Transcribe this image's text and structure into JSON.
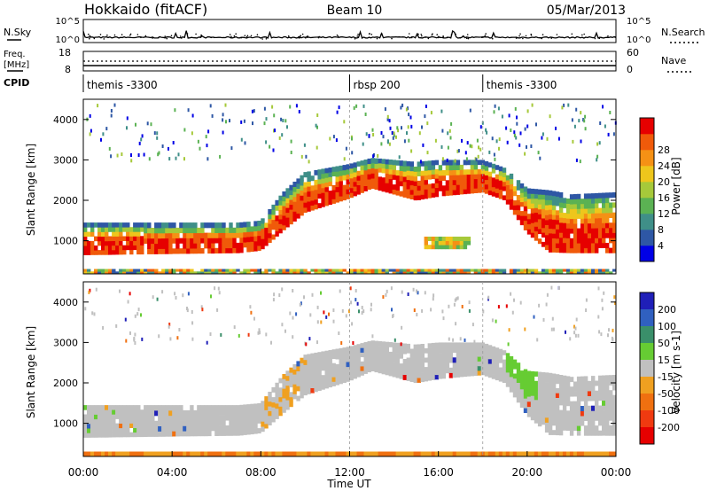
{
  "header": {
    "title_left": "Hokkaido (fitACF)",
    "title_center": "Beam 10",
    "title_right": "05/Mar/2013"
  },
  "top_panels": {
    "nsky_label": "N.Sky",
    "nsky_ticks": [
      "10^5",
      "10^0"
    ],
    "nsearch_label": "N.Search",
    "nsearch_ticks": [
      "10^5",
      "10^0"
    ],
    "freq_label": "Freq.",
    "freq_unit": "[MHz]",
    "freq_ticks": [
      "18",
      "8"
    ],
    "nave_label": "Nave",
    "nave_ticks": [
      "60",
      "0"
    ],
    "cpid_label": "CPID"
  },
  "cpid_segments": [
    {
      "name": "themis -3300",
      "start_hour": 0
    },
    {
      "name": "rbsp 200",
      "start_hour": 12
    },
    {
      "name": "themis -3300",
      "start_hour": 18
    }
  ],
  "chart_data": [
    {
      "type": "heatmap",
      "quantity": "Power",
      "ylabel": "Slant Range [km]",
      "y_ticks": [
        "1000",
        "2000",
        "3000",
        "4000"
      ],
      "ylim": [
        180,
        4500
      ],
      "xlim": [
        0,
        24
      ],
      "colorbar_label": "Power [dB]",
      "colorbar_ticks": [
        "4",
        "8",
        "12",
        "16",
        "20",
        "24",
        "28"
      ],
      "colorbar_range": [
        0,
        32
      ],
      "colors": [
        "#0000e6",
        "#2e57a5",
        "#3f8f88",
        "#5bb253",
        "#a6c93a",
        "#eec61c",
        "#f59115",
        "#f05a0a",
        "#e60000"
      ],
      "echo_bands": [
        {
          "name": "main",
          "lower": [
            [
              0,
              650
            ],
            [
              4,
              680
            ],
            [
              7,
              700
            ],
            [
              8,
              760
            ],
            [
              9,
              1250
            ],
            [
              10,
              1700
            ],
            [
              12,
              2050
            ],
            [
              13,
              2300
            ],
            [
              15,
              2000
            ],
            [
              16,
              2100
            ],
            [
              18,
              2200
            ],
            [
              19,
              2000
            ],
            [
              20,
              1200
            ],
            [
              21,
              720
            ],
            [
              22,
              700
            ],
            [
              24,
              700
            ]
          ],
          "upper": [
            [
              0,
              1450
            ],
            [
              4,
              1450
            ],
            [
              7,
              1450
            ],
            [
              8,
              1500
            ],
            [
              9,
              2200
            ],
            [
              10,
              2700
            ],
            [
              12,
              2900
            ],
            [
              13,
              3050
            ],
            [
              15,
              2950
            ],
            [
              16,
              3000
            ],
            [
              18,
              3000
            ],
            [
              19,
              2800
            ],
            [
              20,
              2300
            ],
            [
              21,
              2250
            ],
            [
              22,
              2150
            ],
            [
              24,
              2200
            ]
          ]
        },
        {
          "name": "near",
          "lower": [
            [
              0,
              180
            ],
            [
              24,
              180
            ]
          ],
          "upper": [
            [
              0,
              300
            ],
            [
              24,
              300
            ]
          ]
        },
        {
          "name": "mid",
          "lower": [
            [
              15.4,
              800
            ],
            [
              17.5,
              800
            ]
          ],
          "upper": [
            [
              15.4,
              1100
            ],
            [
              17.5,
              1100
            ]
          ]
        }
      ]
    },
    {
      "type": "heatmap",
      "quantity": "Velocity",
      "ylabel": "Slant Range [km]",
      "y_ticks": [
        "1000",
        "2000",
        "3000",
        "4000"
      ],
      "ylim": [
        180,
        4500
      ],
      "xlim": [
        0,
        24
      ],
      "xlabel": "Time UT",
      "x_ticks": [
        "00:00",
        "04:00",
        "08:00",
        "12:00",
        "16:00",
        "20:00",
        "00:00"
      ],
      "colorbar_label": "Velocity [m s-1]",
      "colorbar_ticks": [
        "200",
        "100",
        "50",
        "15",
        "-15",
        "-50",
        "-100",
        "-200"
      ],
      "colors": [
        "#1f1fb8",
        "#3060c0",
        "#3a8f6a",
        "#66cc33",
        "#c0c0c0",
        "#f0a020",
        "#f07010",
        "#f03a10",
        "#e60000"
      ],
      "ground_scatter_color": "#c0c0c0"
    }
  ],
  "colors": {
    "ground_scatter": "#c0c0c0"
  }
}
